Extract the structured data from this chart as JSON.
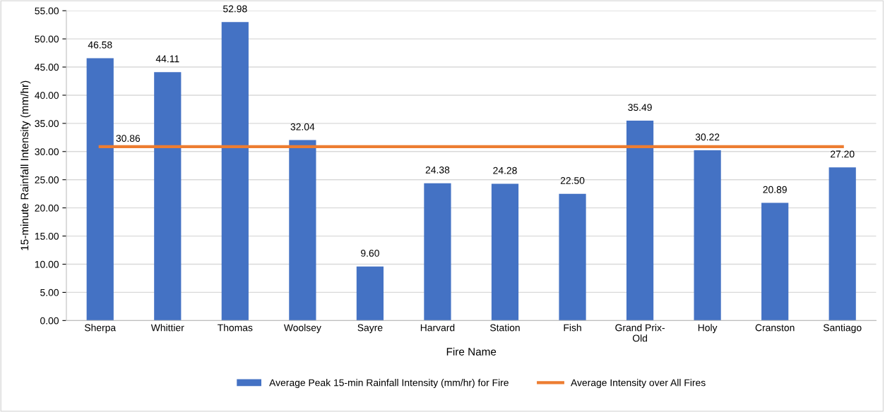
{
  "chart_data": {
    "type": "bar",
    "xlabel": "Fire Name",
    "ylabel": "15-minute Rainfall Intensity (mm/hr)",
    "categories": [
      "Sherpa",
      "Whittier",
      "Thomas",
      "Woolsey",
      "Sayre",
      "Harvard",
      "Station",
      "Fish",
      "Grand Prix-\nOld",
      "Holy",
      "Cranston",
      "Santiago"
    ],
    "series": [
      {
        "name": "Average Peak 15-min Rainfall Intensity (mm/hr) for Fire",
        "color": "#4472c4",
        "values": [
          46.58,
          44.11,
          52.98,
          32.04,
          9.6,
          24.38,
          24.28,
          22.5,
          35.49,
          30.22,
          20.89,
          27.2
        ],
        "value_labels": [
          "46.58",
          "44.11",
          "52.98",
          "32.04",
          "9.60",
          "24.38",
          "24.28",
          "22.50",
          "35.49",
          "30.22",
          "20.89",
          "27.20"
        ]
      },
      {
        "name": "Average Intensity over All Fires",
        "type": "line",
        "color": "#ed7d31",
        "values": [
          30.86,
          30.86,
          30.86,
          30.86,
          30.86,
          30.86,
          30.86,
          30.86,
          30.86,
          30.86,
          30.86,
          30.86
        ],
        "value_labels": [
          "30.86",
          null,
          null,
          null,
          null,
          null,
          null,
          null,
          null,
          null,
          null,
          null
        ]
      }
    ],
    "ylim": [
      0,
      55
    ],
    "yticks": [
      {
        "value": 0,
        "label": "0.00"
      },
      {
        "value": 5,
        "label": "5.00"
      },
      {
        "value": 10,
        "label": "10.00"
      },
      {
        "value": 15,
        "label": "15.00"
      },
      {
        "value": 20,
        "label": "20.00"
      },
      {
        "value": 25,
        "label": "25.00"
      },
      {
        "value": 30,
        "label": "30.00"
      },
      {
        "value": 35,
        "label": "35.00"
      },
      {
        "value": 40,
        "label": "40.00"
      },
      {
        "value": 45,
        "label": "45.00"
      },
      {
        "value": 50,
        "label": "50.00"
      },
      {
        "value": 55,
        "label": "55.00"
      }
    ],
    "grid": "y",
    "legend": "bottom",
    "marker": "none",
    "line_style": "solid"
  }
}
